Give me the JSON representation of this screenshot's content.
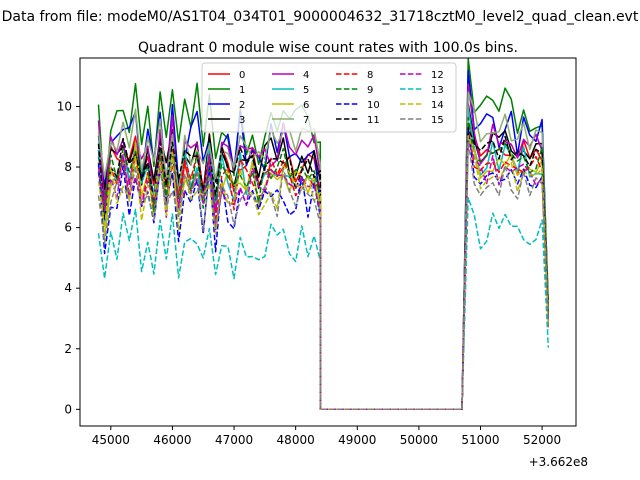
{
  "suptitle": "Data from file: modeM0/AS1T04_034T01_9000004632_31718cztM0_level2_quad_clean.evt",
  "chart_data": {
    "type": "line",
    "title": "Quadrant 0 module wise count rates with 100.0s bins.",
    "xlabel": "",
    "ylabel": "",
    "x_offset": 366200000,
    "x_offset_label": "+3.662e8",
    "xlim": [
      44500,
      52550
    ],
    "ylim": [
      -0.55,
      11.6
    ],
    "xticks": [
      45000,
      46000,
      47000,
      48000,
      49000,
      50000,
      51000,
      52000
    ],
    "xtick_labels": [
      "45000",
      "46000",
      "47000",
      "48000",
      "49000",
      "50000",
      "51000",
      "52000"
    ],
    "yticks": [
      0,
      2,
      4,
      6,
      8,
      10
    ],
    "ytick_labels": [
      "0",
      "2",
      "4",
      "6",
      "8",
      "10"
    ],
    "x": {
      "segment1": {
        "start": 44800,
        "step": 100,
        "count": 37
      },
      "gap": [
        48400,
        48500,
        50700
      ],
      "segment2": {
        "start": 50800,
        "step": 100,
        "count": 14
      }
    },
    "legend": {
      "location": "upper center",
      "ncol": 4
    },
    "series": [
      {
        "name": "0",
        "color": "#ff0000",
        "style": "solid",
        "level": 7.6,
        "amp": 1.0,
        "seed": 1
      },
      {
        "name": "1",
        "color": "#008000",
        "style": "solid",
        "level": 9.0,
        "amp": 1.4,
        "seed": 2
      },
      {
        "name": "2",
        "color": "#0000ff",
        "style": "solid",
        "level": 8.2,
        "amp": 1.5,
        "seed": 3
      },
      {
        "name": "3",
        "color": "#000000",
        "style": "solid",
        "level": 8.0,
        "amp": 0.9,
        "seed": 4
      },
      {
        "name": "4",
        "color": "#bf00bf",
        "style": "solid",
        "level": 7.9,
        "amp": 1.2,
        "seed": 5
      },
      {
        "name": "5",
        "color": "#00bfbf",
        "style": "solid",
        "level": 7.4,
        "amp": 1.0,
        "seed": 6
      },
      {
        "name": "6",
        "color": "#bfbf00",
        "style": "solid",
        "level": 7.2,
        "amp": 1.0,
        "seed": 7
      },
      {
        "name": "7",
        "color": "#8aaf6e",
        "style": "solid",
        "level": 8.3,
        "amp": 1.1,
        "seed": 8
      },
      {
        "name": "8",
        "color": "#ff0000",
        "style": "dashed",
        "level": 7.3,
        "amp": 0.9,
        "seed": 9
      },
      {
        "name": "9",
        "color": "#008000",
        "style": "dashed",
        "level": 7.5,
        "amp": 0.9,
        "seed": 10
      },
      {
        "name": "10",
        "color": "#0000ff",
        "style": "dashed",
        "level": 6.6,
        "amp": 1.1,
        "seed": 11
      },
      {
        "name": "11",
        "color": "#000000",
        "style": "dashed",
        "level": 7.7,
        "amp": 0.9,
        "seed": 12
      },
      {
        "name": "12",
        "color": "#bf00bf",
        "style": "dashed",
        "level": 7.1,
        "amp": 0.9,
        "seed": 13
      },
      {
        "name": "13",
        "color": "#00bfbf",
        "style": "dashed",
        "level": 5.1,
        "amp": 0.9,
        "seed": 14
      },
      {
        "name": "14",
        "color": "#bfbf00",
        "style": "dashed",
        "level": 7.0,
        "amp": 0.9,
        "seed": 15
      },
      {
        "name": "15",
        "color": "#808080",
        "style": "dashed",
        "level": 6.7,
        "amp": 0.9,
        "seed": 16
      }
    ]
  }
}
